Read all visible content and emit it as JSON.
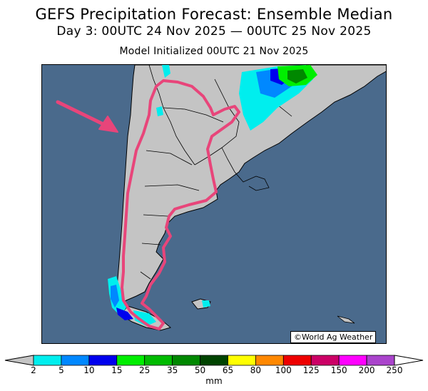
{
  "title": "GEFS Precipitation Forecast: Ensemble Median",
  "period": "Day 3: 00UTC 24 Nov 2025 — 00UTC 25 Nov 2025",
  "initialized": "Model Initialized 00UTC 21 Nov 2025",
  "credit": "©World Ag Weather",
  "colors": {
    "ocean": "#4a6a8c",
    "land": "#c4c4c4",
    "highlight": "#e8457a"
  },
  "legend": {
    "units": "mm",
    "ticks": [
      "2",
      "5",
      "10",
      "15",
      "25",
      "35",
      "50",
      "65",
      "80",
      "100",
      "125",
      "150",
      "200",
      "250"
    ],
    "colors": [
      "#00eeee",
      "#0088ff",
      "#0000ee",
      "#00ee00",
      "#00bb00",
      "#008800",
      "#004400",
      "#ffff00",
      "#ff8800",
      "#ee0000",
      "#cc0066",
      "#ff00ff",
      "#aa44cc"
    ]
  }
}
